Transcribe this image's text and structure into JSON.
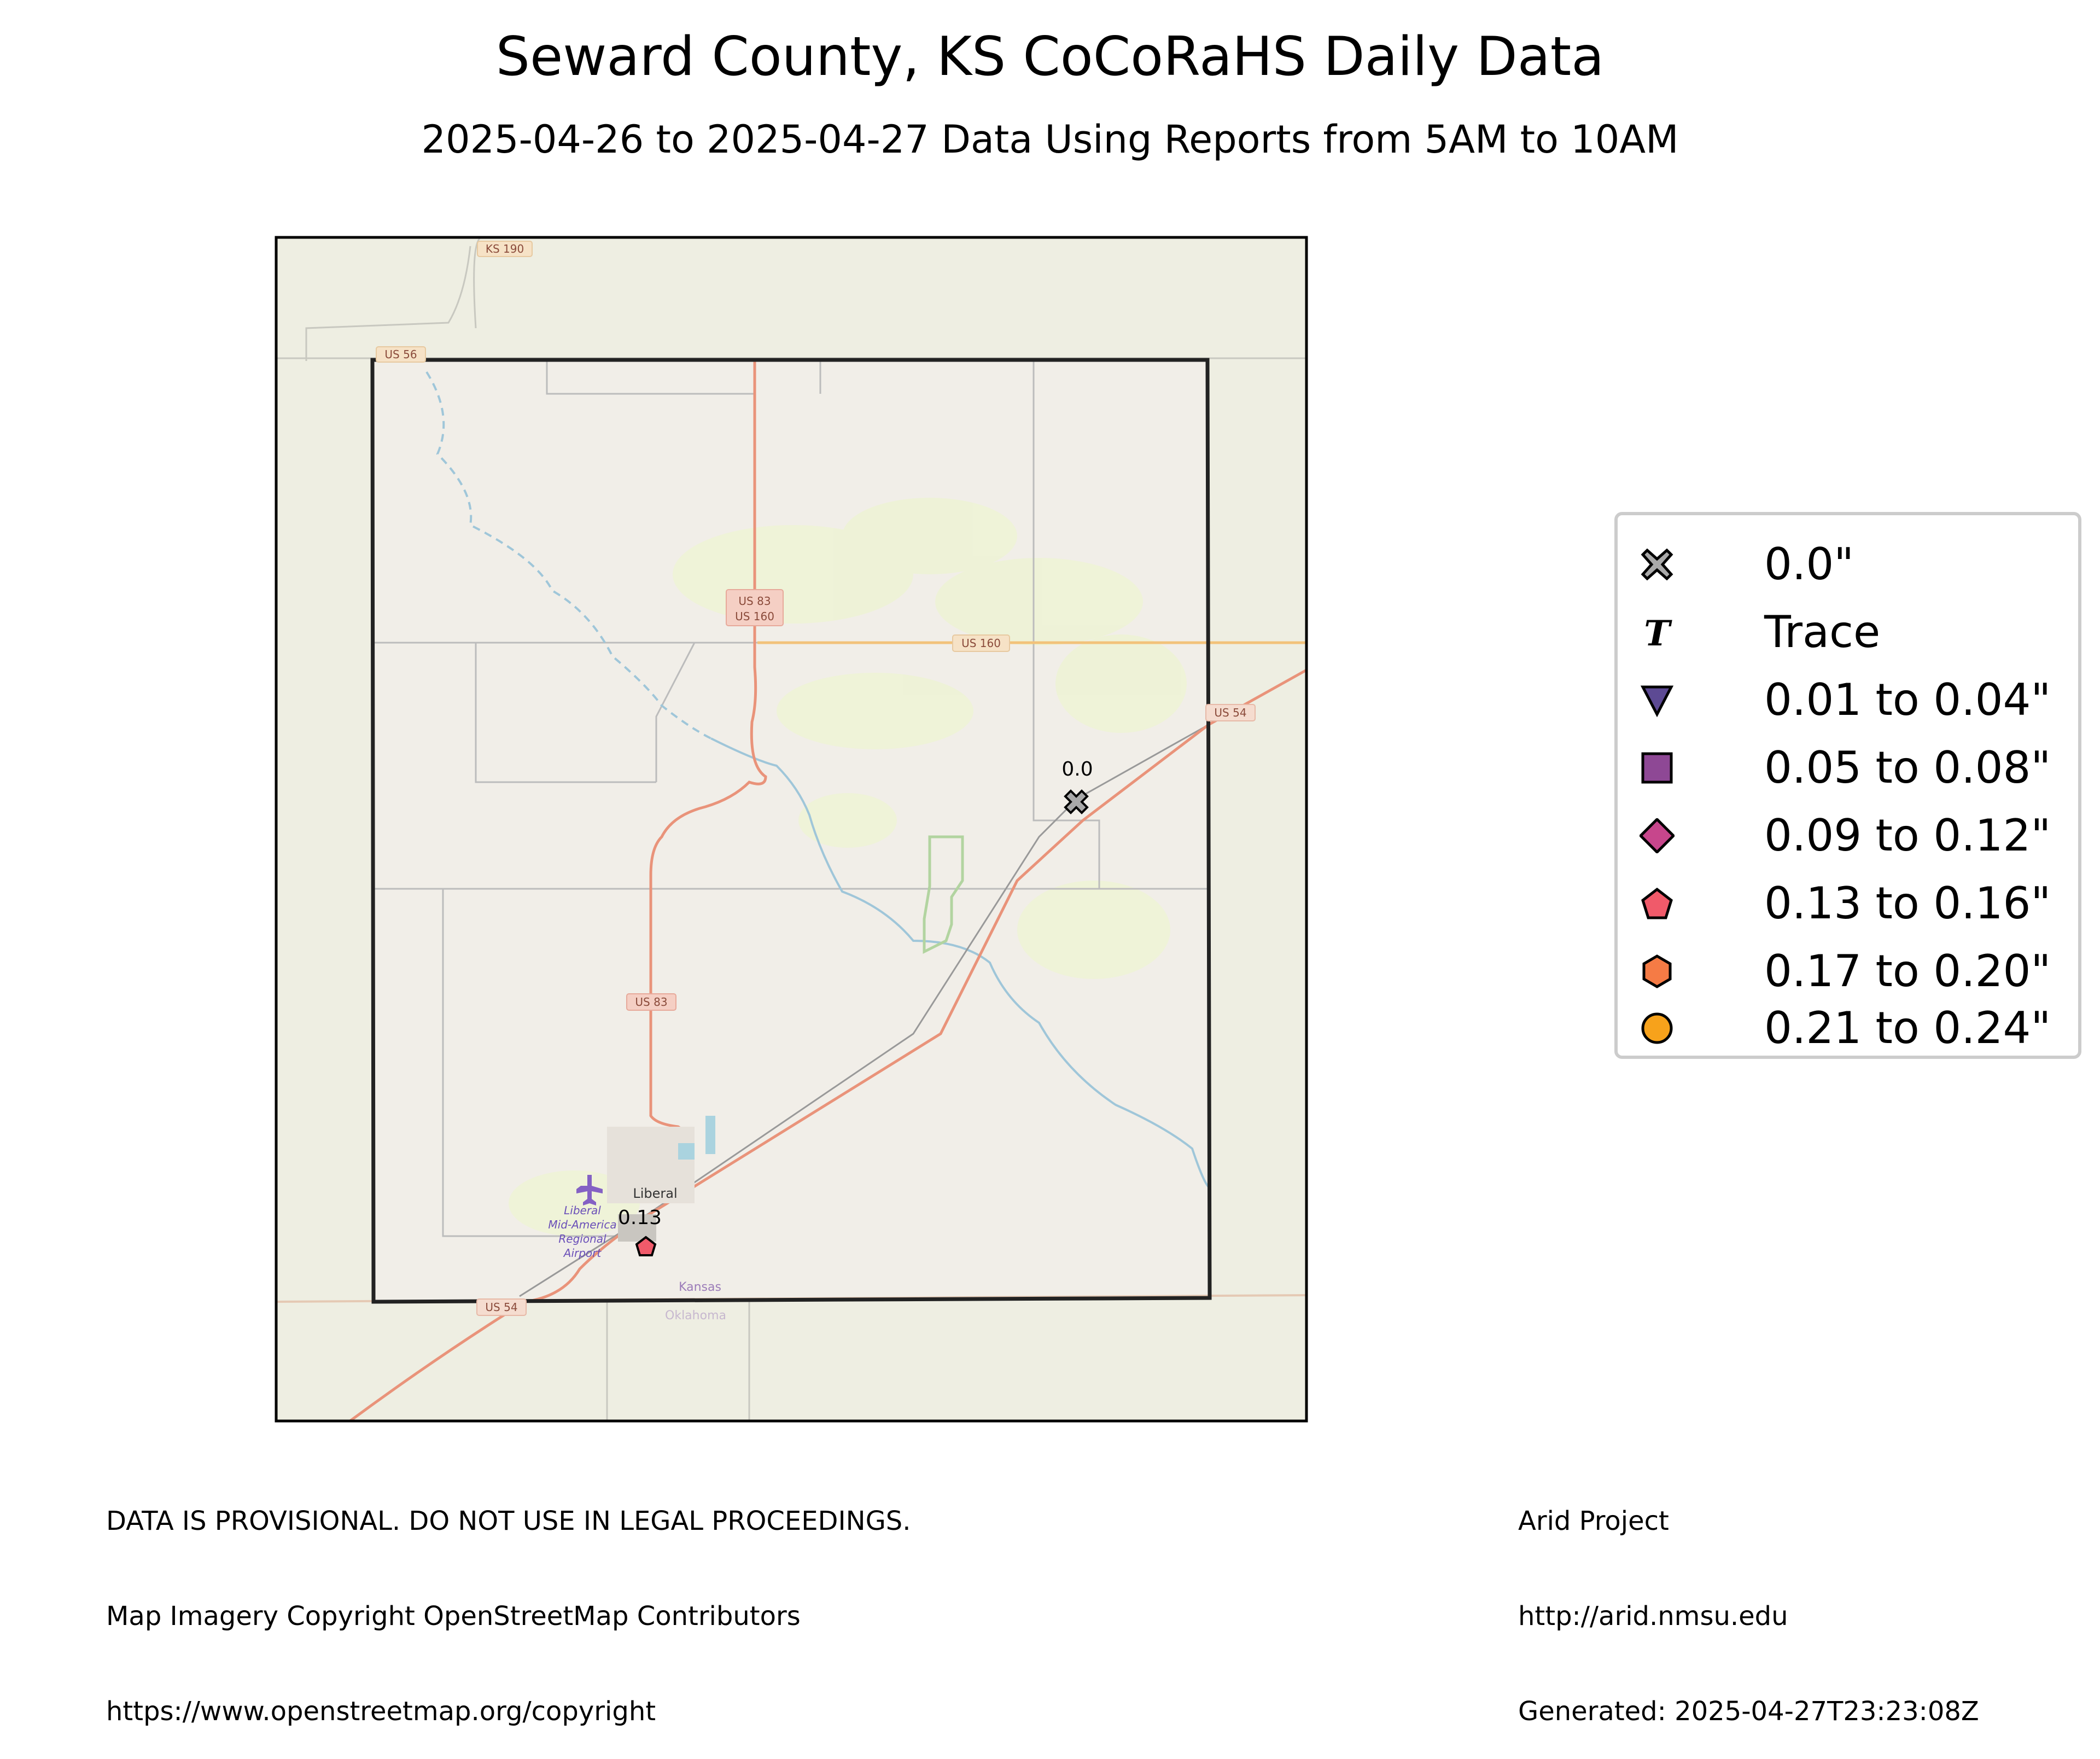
{
  "title": "Seward County, KS CoCoRaHS Daily Data",
  "subtitle": "2025-04-26 to 2025-04-27 Data Using Reports from 5AM to 10AM",
  "map": {
    "road_shields": [
      "KS 190",
      "US 56",
      "US 83",
      "US 160",
      "US 160",
      "US 54",
      "US 83",
      "US 54"
    ],
    "place_labels": {
      "town": "Liberal",
      "airport": [
        "Liberal",
        "Mid-America",
        "Regional",
        "Airport"
      ],
      "state_north": "Kansas",
      "state_south": "Oklahoma"
    },
    "stations": [
      {
        "value_label": "0.0",
        "category": "0.0\"",
        "marker": "x-icon"
      },
      {
        "value_label": "0.13",
        "category": "0.13 to 0.16\"",
        "marker": "pentagon-icon"
      }
    ]
  },
  "legend": {
    "items": [
      {
        "label": "0.0\"",
        "icon": "x-icon",
        "color": "#a9a9a9"
      },
      {
        "label": "Trace",
        "icon": "trace-t-icon",
        "color": "#000000"
      },
      {
        "label": "0.01 to 0.04\"",
        "icon": "triangle-down-icon",
        "color": "#5d4a94"
      },
      {
        "label": "0.05 to 0.08\"",
        "icon": "square-icon",
        "color": "#8e4895"
      },
      {
        "label": "0.09 to 0.12\"",
        "icon": "diamond-icon",
        "color": "#c7468c"
      },
      {
        "label": "0.13 to 0.16\"",
        "icon": "pentagon-icon",
        "color": "#f05a6a"
      },
      {
        "label": "0.17 to 0.20\"",
        "icon": "hexagon-icon",
        "color": "#f57b45"
      },
      {
        "label": "0.21 to 0.24\"",
        "icon": "circle-icon",
        "color": "#f7a21b"
      }
    ]
  },
  "footer": {
    "left": [
      "DATA IS PROVISIONAL. DO NOT USE IN LEGAL PROCEEDINGS.",
      "Map Imagery Copyright OpenStreetMap Contributors",
      "https://www.openstreetmap.org/copyright"
    ],
    "right": [
      "Arid Project",
      "http://arid.nmsu.edu",
      "Generated: 2025-04-27T23:23:08Z"
    ]
  },
  "colors": {
    "map_background": "#eeeee2",
    "county_fill": "#f1eee8",
    "highway": "#e9937a",
    "secondary_road": "#f2c27a",
    "river": "#9fc6d9",
    "railway": "#999999"
  }
}
